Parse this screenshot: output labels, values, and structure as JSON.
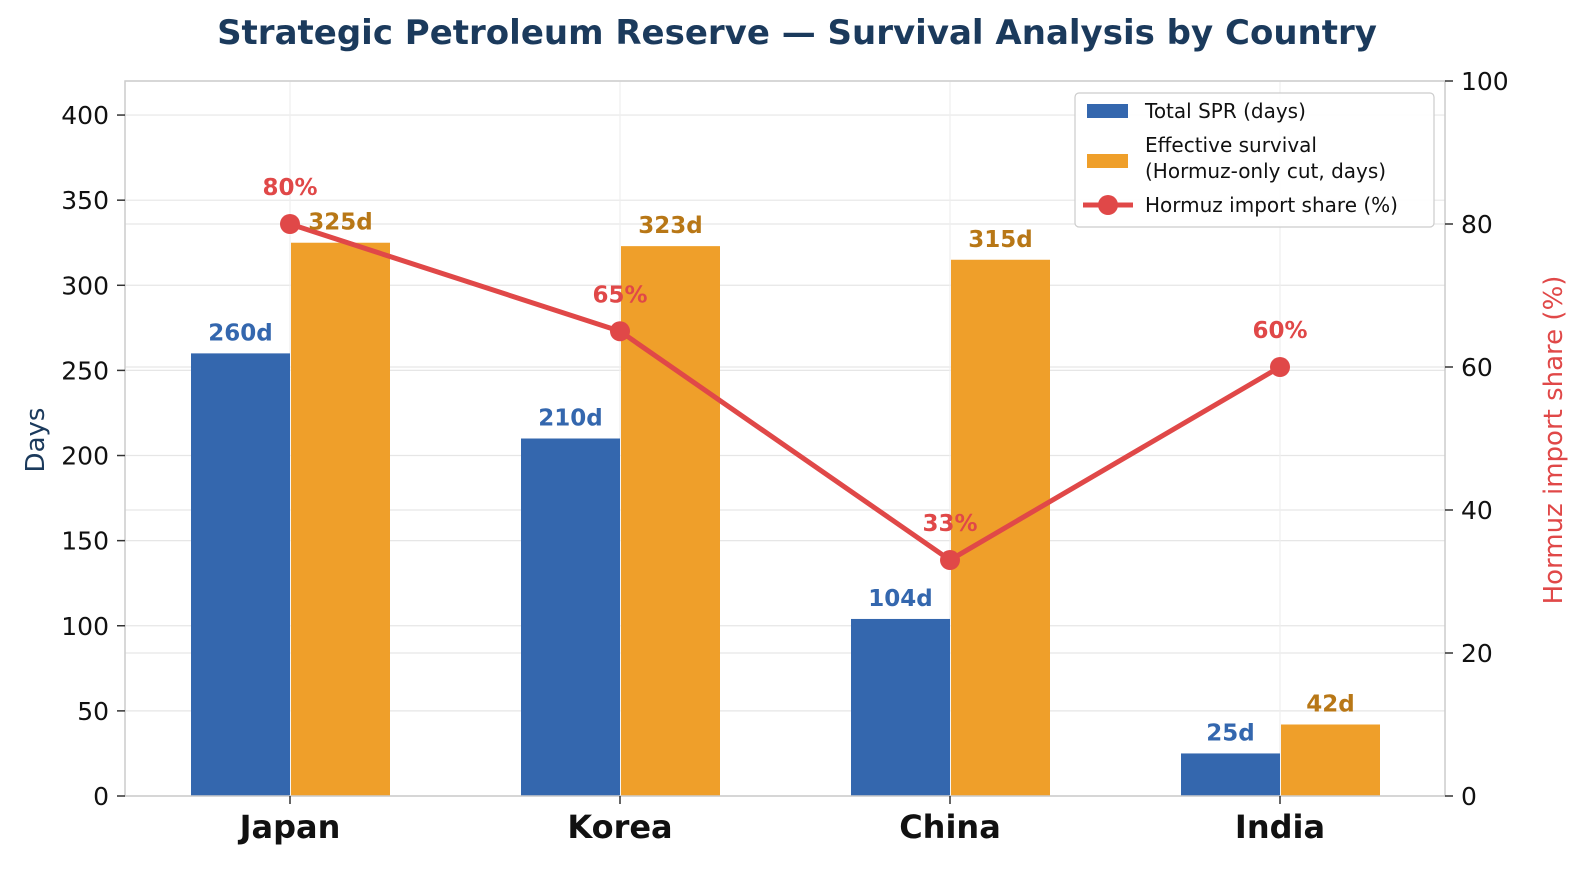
{
  "chart_data": {
    "type": "bar",
    "title": "Strategic Petroleum Reserve — Survival Analysis by Country",
    "categories": [
      "Japan",
      "Korea",
      "China",
      "India"
    ],
    "ylabel": "Days",
    "y2label": "Hormuz import share (%)",
    "ylim": [
      0,
      420
    ],
    "y2lim": [
      0,
      100
    ],
    "yticks": [
      0,
      50,
      100,
      150,
      200,
      250,
      300,
      350,
      400
    ],
    "y2ticks": [
      0,
      20,
      40,
      60,
      80,
      100
    ],
    "legend_position": "top-right",
    "series": [
      {
        "name": "Total SPR (days)",
        "kind": "bar",
        "color": "#3467ae",
        "label_color": "#3467ae",
        "values": [
          260,
          210,
          104,
          25
        ],
        "labels": [
          "260d",
          "210d",
          "104d",
          "25d"
        ]
      },
      {
        "name": "Effective survival\n(Hormuz-only cut, days)",
        "kind": "bar",
        "color": "#ef9f2a",
        "label_color": "#b87716",
        "values": [
          325,
          323,
          315,
          42
        ],
        "labels": [
          "325d",
          "323d",
          "315d",
          "42d"
        ]
      },
      {
        "name": "Hormuz import share (%)",
        "kind": "line",
        "axis": "right",
        "color": "#e04848",
        "label_color": "#e04848",
        "values": [
          80,
          65,
          33,
          60
        ],
        "labels": [
          "80%",
          "65%",
          "33%",
          "60%"
        ]
      }
    ]
  }
}
